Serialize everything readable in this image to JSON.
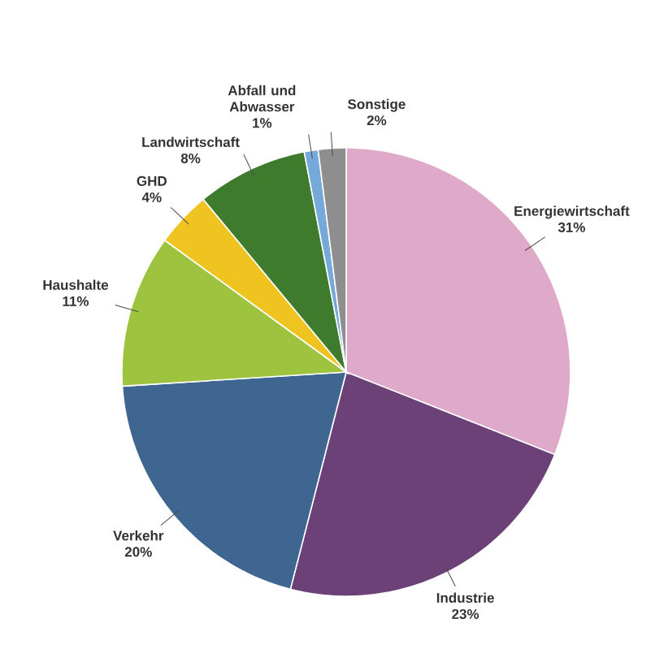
{
  "chart_data": {
    "type": "pie",
    "categories": [
      "Energiewirtschaft",
      "Industrie",
      "Verkehr",
      "Haushalte",
      "GHD",
      "Landwirtschaft",
      "Abfall und Abwasser",
      "Sonstige"
    ],
    "values": [
      31,
      23,
      20,
      11,
      4,
      8,
      1,
      2
    ],
    "value_labels": [
      "31%",
      "23%",
      "20%",
      "11%",
      "4%",
      "8%",
      "1%",
      "2%"
    ],
    "colors": [
      "#dfa9c9",
      "#6c4178",
      "#3e6690",
      "#9dc33f",
      "#efc421",
      "#3f7b2c",
      "#74a9da",
      "#8e8e8e"
    ]
  }
}
